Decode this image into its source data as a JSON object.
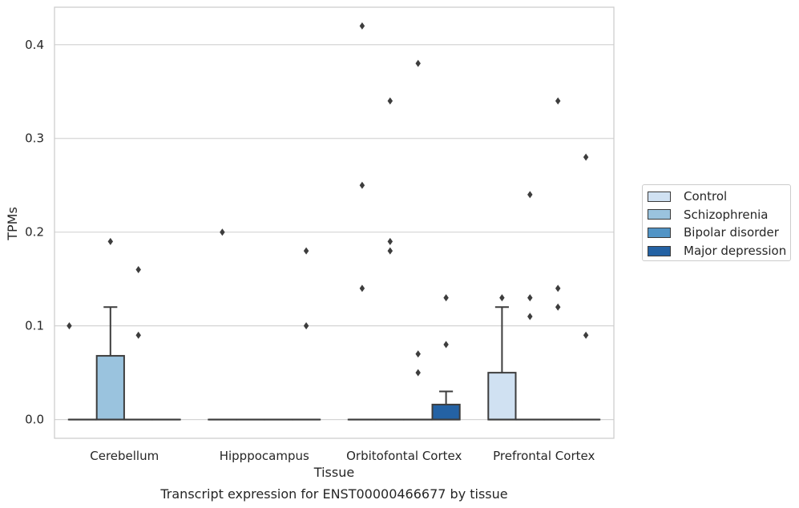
{
  "chart_data": {
    "type": "box",
    "title": "Transcript expression for ENST00000466677 by tissue",
    "xlabel": "Tissue",
    "ylabel": "TPMs",
    "categories": [
      "Cerebellum",
      "Hipppocampus",
      "Orbitofontal Cortex",
      "Prefrontal Cortex"
    ],
    "ylim": [
      -0.02,
      0.44
    ],
    "yticks": [
      "0.0",
      "0.1",
      "0.2",
      "0.3",
      "0.4"
    ],
    "grid": true,
    "legend_position": "right",
    "series": [
      {
        "name": "Control",
        "color": "#d0e1f2",
        "boxes": [
          {
            "q1": 0,
            "median": 0,
            "q3": 0,
            "whisker_low": 0,
            "whisker_high": 0,
            "outliers": []
          },
          {
            "q1": 0,
            "median": 0,
            "q3": 0,
            "whisker_low": 0,
            "whisker_high": 0,
            "outliers": [
              0.2
            ]
          },
          {
            "q1": 0,
            "median": 0,
            "q3": 0,
            "whisker_low": 0,
            "whisker_high": 0,
            "outliers": [
              0.42,
              0.25,
              0.14
            ]
          },
          {
            "q1": 0,
            "median": 0,
            "q3": 0.05,
            "whisker_low": 0,
            "whisker_high": 0.12,
            "outliers": [
              0.13
            ]
          }
        ]
      },
      {
        "name": "Schizophrenia",
        "color": "#9ac3de",
        "boxes": [
          {
            "q1": 0,
            "median": 0,
            "q3": 0.068,
            "whisker_low": 0,
            "whisker_high": 0.12,
            "outliers": [
              0.19
            ]
          },
          {
            "q1": 0,
            "median": 0,
            "q3": 0,
            "whisker_low": 0,
            "whisker_high": 0,
            "outliers": []
          },
          {
            "q1": 0,
            "median": 0,
            "q3": 0,
            "whisker_low": 0,
            "whisker_high": 0,
            "outliers": [
              0.34,
              0.19,
              0.18
            ]
          },
          {
            "q1": 0,
            "median": 0,
            "q3": 0,
            "whisker_low": 0,
            "whisker_high": 0,
            "outliers": [
              0.24,
              0.13,
              0.11
            ]
          }
        ]
      },
      {
        "name": "Bipolar disorder",
        "color": "#5194c6",
        "boxes": [
          {
            "q1": 0,
            "median": 0,
            "q3": 0,
            "whisker_low": 0,
            "whisker_high": 0,
            "outliers": [
              0.16,
              0.09
            ]
          },
          {
            "q1": 0,
            "median": 0,
            "q3": 0,
            "whisker_low": 0,
            "whisker_high": 0,
            "outliers": []
          },
          {
            "q1": 0,
            "median": 0,
            "q3": 0,
            "whisker_low": 0,
            "whisker_high": 0,
            "outliers": [
              0.38,
              0.07,
              0.05
            ]
          },
          {
            "q1": 0,
            "median": 0,
            "q3": 0,
            "whisker_low": 0,
            "whisker_high": 0,
            "outliers": [
              0.34,
              0.14,
              0.12
            ]
          }
        ]
      },
      {
        "name": "Major depression",
        "color": "#2462a4",
        "boxes": [
          {
            "q1": 0,
            "median": 0,
            "q3": 0,
            "whisker_low": 0,
            "whisker_high": 0,
            "outliers": []
          },
          {
            "q1": 0,
            "median": 0,
            "q3": 0,
            "whisker_low": 0,
            "whisker_high": 0,
            "outliers": [
              0.18,
              0.1
            ]
          },
          {
            "q1": 0,
            "median": 0,
            "q3": 0.016,
            "whisker_low": 0,
            "whisker_high": 0.03,
            "outliers": [
              0.13,
              0.08
            ]
          },
          {
            "q1": 0,
            "median": 0,
            "q3": 0,
            "whisker_low": 0,
            "whisker_high": 0,
            "outliers": [
              0.28,
              0.09
            ]
          }
        ]
      }
    ],
    "extra_outliers": [
      {
        "category": "Cerebellum",
        "value": 0.1
      }
    ]
  }
}
